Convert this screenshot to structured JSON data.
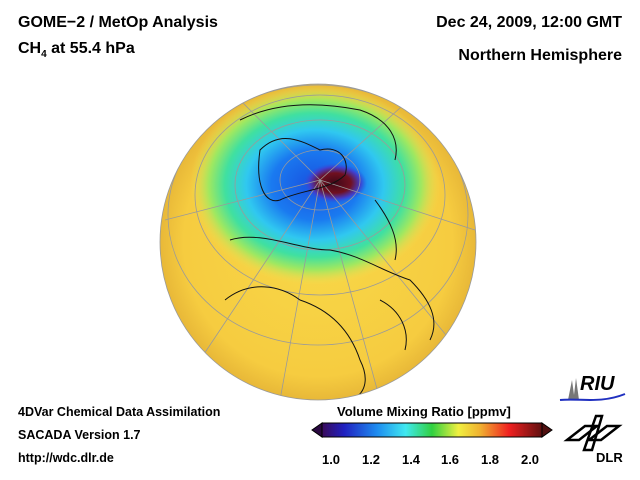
{
  "header": {
    "title": "GOME−2 / MetOp Analysis",
    "species": "CH",
    "species_sub": "4",
    "level": " at 55.4 hPa",
    "datetime": "Dec 24, 2009, 12:00 GMT",
    "region": "Northern Hemisphere"
  },
  "footer": {
    "line1": "4DVar Chemical Data Assimilation",
    "line2": "SACADA Version 1.7",
    "line3": "http://wdc.dlr.de"
  },
  "colorbar": {
    "title": "Volume Mixing Ratio [ppmv]",
    "min": 1.0,
    "max": 2.0,
    "ticks": [
      "1.0",
      "1.2",
      "1.4",
      "1.6",
      "1.8",
      "2.0"
    ],
    "colors": [
      "#3a0a5a",
      "#2020c0",
      "#1e8cf0",
      "#40e8f0",
      "#30d040",
      "#f0f040",
      "#f0b030",
      "#f02020",
      "#601010"
    ]
  },
  "logos": {
    "riu": "RIU",
    "dlr": "DLR"
  }
}
